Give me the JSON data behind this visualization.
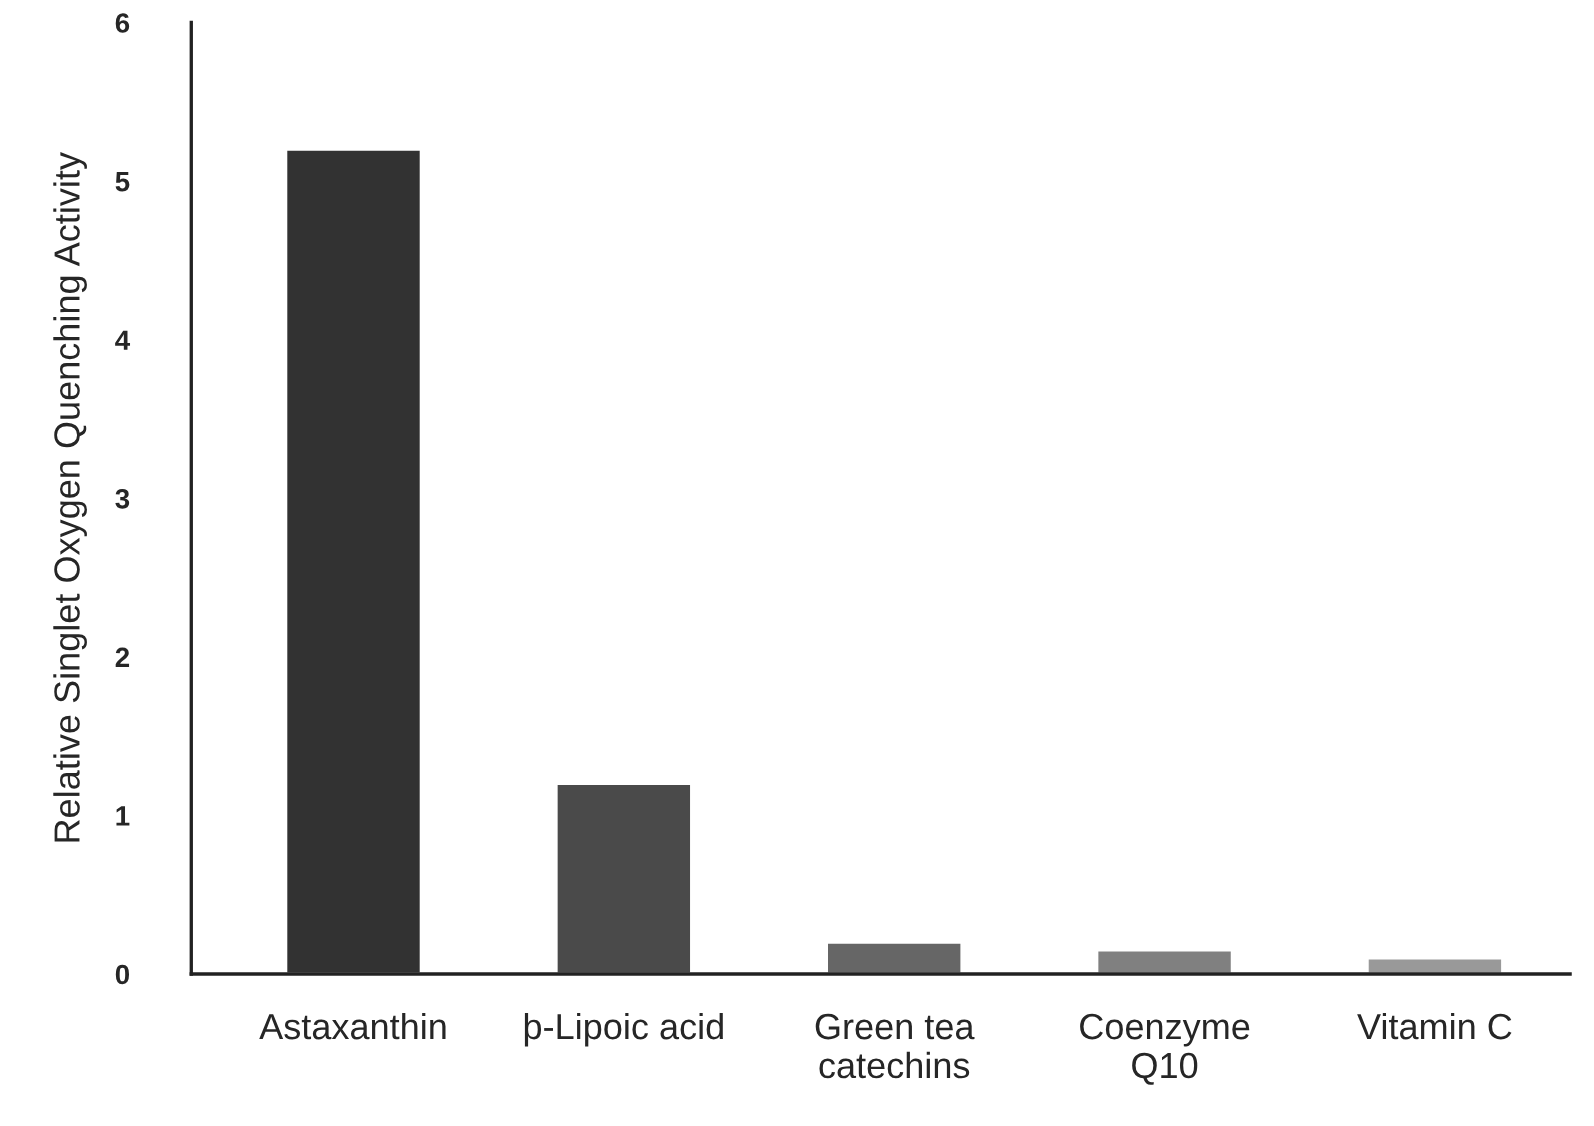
{
  "chart_data": {
    "type": "bar",
    "ylabel": "Relative Singlet Oxygen Quenching Activity",
    "categories": [
      "Astaxanthin",
      "þ-Lipoic acid",
      "Green tea\ncatechins",
      "Coenzyme\nQ10",
      "Vitamin C"
    ],
    "values": [
      5.2,
      1.2,
      0.2,
      0.15,
      0.1
    ],
    "colors": [
      "#323232",
      "#4a4a4a",
      "#666666",
      "#808080",
      "#999999"
    ],
    "ylim": [
      0,
      6
    ],
    "yticks": [
      0,
      1,
      2,
      3,
      4,
      5,
      6
    ],
    "grid": false
  }
}
